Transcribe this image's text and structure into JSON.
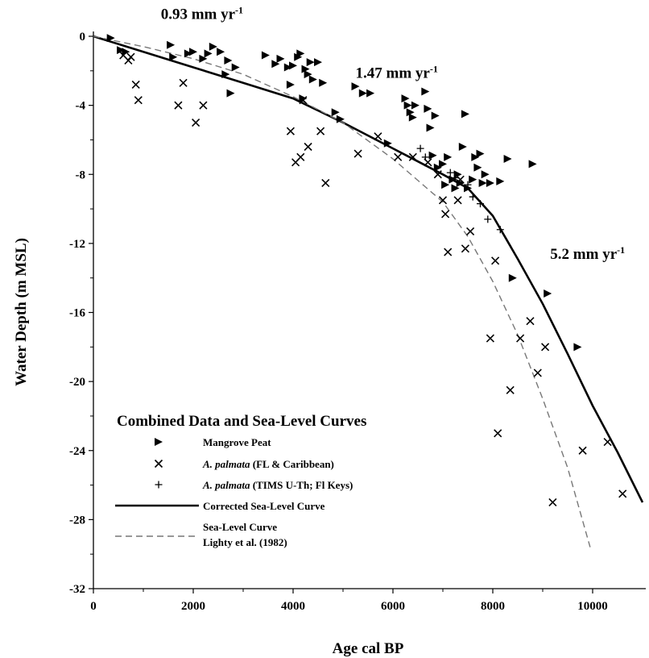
{
  "chart_data": {
    "type": "scatter",
    "title": "",
    "xlabel": "Age cal BP",
    "ylabel": "Water Depth (m MSL)",
    "xlim": [
      0,
      11000
    ],
    "ylim": [
      -32,
      0
    ],
    "x_ticks": [
      "0",
      "2000",
      "4000",
      "6000",
      "8000",
      "10000"
    ],
    "x_tick_values": [
      0,
      2000,
      4000,
      6000,
      8000,
      10000
    ],
    "y_ticks": [
      "0",
      "-4",
      "-8",
      "-12",
      "-16",
      "-20",
      "-24",
      "-28",
      "-32"
    ],
    "y_tick_values": [
      0,
      -4,
      -8,
      -12,
      -16,
      -20,
      -24,
      -28,
      -32
    ],
    "grid": false,
    "annotations": [
      {
        "text": "0.93 mm yr",
        "sup": "-1",
        "x": 1350,
        "y": 1.0
      },
      {
        "text": "1.47 mm yr",
        "sup": "-1",
        "x": 5250,
        "y": -2.4
      },
      {
        "text": "5.2 mm yr",
        "sup": "-1",
        "x": 9150,
        "y": -12.9
      }
    ],
    "legend": {
      "title": "Combined Data and Sea-Level Curves",
      "position": "bottom-left",
      "entries": [
        {
          "label_italic": "",
          "label": "Mangrove Peat",
          "marker": "triangle"
        },
        {
          "label_italic": "A. palmata",
          "label": " (FL & Caribbean)",
          "marker": "x"
        },
        {
          "label_italic": "A. palmata",
          "label": " (TIMS U-Th; Fl Keys)",
          "marker": "plus"
        },
        {
          "label_italic": "",
          "label": "Corrected Sea-Level Curve",
          "marker": "solid-line"
        },
        {
          "label_italic": "",
          "label": "Sea-Level Curve",
          "label2": "Lighty et al. (1982)",
          "marker": "dashed-line"
        }
      ]
    },
    "series": [
      {
        "name": "Mangrove Peat",
        "marker": "triangle",
        "points": [
          [
            350,
            -0.1
          ],
          [
            550,
            -0.8
          ],
          [
            650,
            -0.9
          ],
          [
            1550,
            -0.5
          ],
          [
            1600,
            -1.2
          ],
          [
            2000,
            -0.9
          ],
          [
            2300,
            -1.0
          ],
          [
            2400,
            -0.6
          ],
          [
            2550,
            -0.9
          ],
          [
            2700,
            -1.4
          ],
          [
            2850,
            -1.8
          ],
          [
            2650,
            -2.2
          ],
          [
            2200,
            -1.3
          ],
          [
            1900,
            -1.0
          ],
          [
            2750,
            -3.3
          ],
          [
            3450,
            -1.1
          ],
          [
            3650,
            -1.6
          ],
          [
            3750,
            -1.3
          ],
          [
            3900,
            -1.8
          ],
          [
            4000,
            -1.7
          ],
          [
            4100,
            -1.2
          ],
          [
            4250,
            -1.9
          ],
          [
            4350,
            -1.5
          ],
          [
            4400,
            -2.5
          ],
          [
            4500,
            -1.5
          ],
          [
            4600,
            -2.7
          ],
          [
            4300,
            -2.2
          ],
          [
            4150,
            -1.0
          ],
          [
            3950,
            -2.8
          ],
          [
            4200,
            -3.6
          ],
          [
            4850,
            -4.4
          ],
          [
            4950,
            -4.8
          ],
          [
            5250,
            -2.9
          ],
          [
            5400,
            -3.3
          ],
          [
            5550,
            -3.3
          ],
          [
            5900,
            -6.2
          ],
          [
            6250,
            -3.6
          ],
          [
            6300,
            -4.0
          ],
          [
            6350,
            -4.4
          ],
          [
            6400,
            -4.7
          ],
          [
            6450,
            -4.0
          ],
          [
            6650,
            -3.2
          ],
          [
            6700,
            -4.2
          ],
          [
            6750,
            -5.3
          ],
          [
            6800,
            -6.9
          ],
          [
            6850,
            -4.6
          ],
          [
            6900,
            -7.6
          ],
          [
            7000,
            -7.4
          ],
          [
            7050,
            -8.6
          ],
          [
            7100,
            -7.0
          ],
          [
            7200,
            -8.3
          ],
          [
            7250,
            -8.8
          ],
          [
            7300,
            -8.0
          ],
          [
            7350,
            -8.5
          ],
          [
            7400,
            -6.4
          ],
          [
            7450,
            -4.5
          ],
          [
            7500,
            -8.8
          ],
          [
            7600,
            -8.3
          ],
          [
            7650,
            -7.0
          ],
          [
            7700,
            -7.6
          ],
          [
            7750,
            -6.8
          ],
          [
            7800,
            -8.5
          ],
          [
            7850,
            -8.0
          ],
          [
            7950,
            -8.5
          ],
          [
            8150,
            -8.4
          ],
          [
            8300,
            -7.1
          ],
          [
            8400,
            -14.0
          ],
          [
            8800,
            -7.4
          ],
          [
            9100,
            -14.9
          ],
          [
            9700,
            -18.0
          ]
        ]
      },
      {
        "name": "A. palmata (FL & Caribbean)",
        "marker": "x",
        "points": [
          [
            600,
            -1.1
          ],
          [
            700,
            -1.4
          ],
          [
            750,
            -1.2
          ],
          [
            850,
            -2.8
          ],
          [
            900,
            -3.7
          ],
          [
            1700,
            -4.0
          ],
          [
            1800,
            -2.7
          ],
          [
            2050,
            -5.0
          ],
          [
            2200,
            -4.0
          ],
          [
            3950,
            -5.5
          ],
          [
            4050,
            -7.3
          ],
          [
            4150,
            -7.0
          ],
          [
            4200,
            -3.7
          ],
          [
            4300,
            -6.4
          ],
          [
            4550,
            -5.5
          ],
          [
            4650,
            -8.5
          ],
          [
            5300,
            -6.8
          ],
          [
            5700,
            -5.8
          ],
          [
            6100,
            -7.0
          ],
          [
            6400,
            -7.0
          ],
          [
            6700,
            -7.3
          ],
          [
            6900,
            -8.0
          ],
          [
            7000,
            -9.5
          ],
          [
            7050,
            -10.3
          ],
          [
            7100,
            -12.5
          ],
          [
            7300,
            -9.5
          ],
          [
            7350,
            -8.3
          ],
          [
            7450,
            -12.3
          ],
          [
            7550,
            -11.3
          ],
          [
            7950,
            -17.5
          ],
          [
            8050,
            -13.0
          ],
          [
            8100,
            -23.0
          ],
          [
            8350,
            -20.5
          ],
          [
            8550,
            -17.5
          ],
          [
            8750,
            -16.5
          ],
          [
            8900,
            -19.5
          ],
          [
            9050,
            -18.0
          ],
          [
            9200,
            -27.0
          ],
          [
            9800,
            -24.0
          ],
          [
            10300,
            -23.5
          ],
          [
            10600,
            -26.5
          ]
        ]
      },
      {
        "name": "A. palmata (TIMS U-Th; Fl Keys)",
        "marker": "plus",
        "points": [
          [
            6550,
            -6.5
          ],
          [
            6650,
            -7.0
          ],
          [
            7150,
            -7.9
          ],
          [
            7250,
            -8.2
          ],
          [
            7500,
            -8.6
          ],
          [
            7600,
            -9.3
          ],
          [
            7750,
            -9.7
          ],
          [
            7900,
            -10.6
          ],
          [
            8150,
            -11.2
          ]
        ]
      },
      {
        "name": "Corrected Sea-Level Curve",
        "marker": "solid-line",
        "points": [
          [
            0,
            0
          ],
          [
            1000,
            -0.9
          ],
          [
            2000,
            -1.8
          ],
          [
            3000,
            -2.7
          ],
          [
            4000,
            -3.6
          ],
          [
            5000,
            -5.0
          ],
          [
            6000,
            -6.5
          ],
          [
            7000,
            -8.0
          ],
          [
            7500,
            -8.8
          ],
          [
            8000,
            -10.4
          ],
          [
            8500,
            -12.9
          ],
          [
            9000,
            -15.5
          ],
          [
            9500,
            -18.4
          ],
          [
            10000,
            -21.4
          ],
          [
            10500,
            -24.1
          ],
          [
            11000,
            -27.0
          ]
        ]
      },
      {
        "name": "Sea-Level Curve Lighty et al. (1982)",
        "marker": "dashed-line",
        "points": [
          [
            0,
            0
          ],
          [
            1000,
            -0.6
          ],
          [
            2000,
            -1.3
          ],
          [
            3000,
            -2.2
          ],
          [
            4000,
            -3.5
          ],
          [
            5000,
            -5.0
          ],
          [
            6000,
            -7.1
          ],
          [
            7000,
            -9.6
          ],
          [
            7500,
            -11.6
          ],
          [
            8000,
            -14.2
          ],
          [
            8500,
            -17.3
          ],
          [
            9000,
            -21.0
          ],
          [
            9500,
            -25.0
          ],
          [
            9950,
            -29.6
          ]
        ]
      }
    ]
  }
}
